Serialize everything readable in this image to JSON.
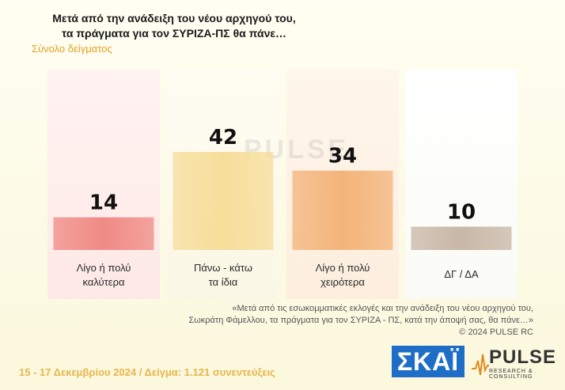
{
  "title": "Μετά από την ανάδειξη του νέου αρχηγού του,\nτα πράγματα για τον ΣΥΡΙΖΑ-ΠΣ θα πάνε…",
  "subtitle": "Σύνολο δείγματος",
  "watermark": "PULSE",
  "chart_data": {
    "type": "bar",
    "title": "Μετά από την ανάδειξη του νέου αρχηγού του, τα πράγματα για τον ΣΥΡΙΖΑ-ΠΣ θα πάνε…",
    "subtitle": "Σύνολο δείγματος",
    "categories": [
      "Λίγο ή πολύ\nκαλύτερα",
      "Πάνω - κάτω\nτα ίδια",
      "Λίγο ή πολύ\nχειρότερα",
      "ΔΓ / ΔΑ"
    ],
    "values": [
      14,
      42,
      34,
      10
    ],
    "colors": [
      "#f08a85",
      "#f6dd9a",
      "#f3b47a",
      "#c8b7a6"
    ],
    "ylim": [
      0,
      100
    ],
    "grid": false,
    "legend": "none"
  },
  "footnote": {
    "line1": "«Μετά από τις εσωκομματικές εκλογές και την ανάδειξη του νέου αρχηγού του,",
    "line2": "Σωκράτη Φάμελλου, τα πράγματα για τον ΣΥΡΙΖΑ - ΠΣ, κατά την άποψή σας, θα πάνε…»",
    "line3": "©  2024  PULSE RC"
  },
  "footer": {
    "date": "15 - 17 Δεκεμβρίου 2024  /  Δείγμα:  1.121 συνεντεύξεις"
  },
  "logos": {
    "skai": "ΣΚΑΪ",
    "pulse": "PULSE",
    "pulse_sub": "RESEARCH & CONSULTING"
  }
}
